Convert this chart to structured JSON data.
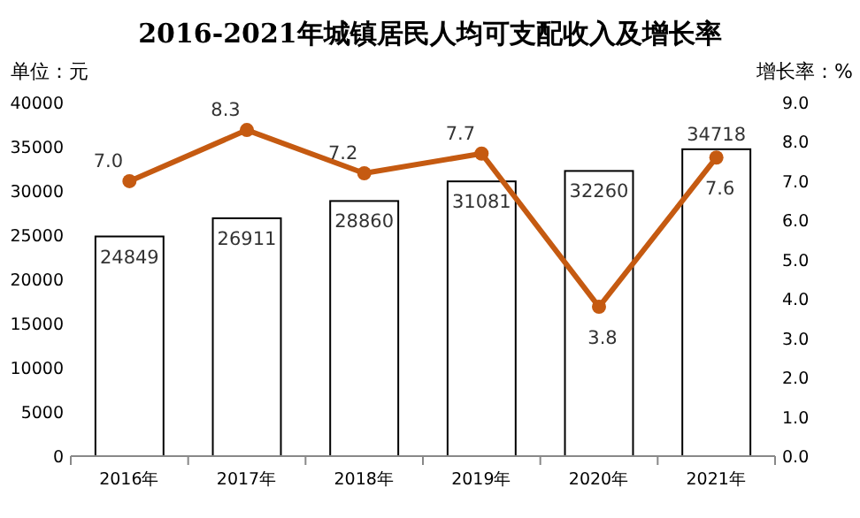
{
  "chart_data": {
    "type": "bar",
    "title": "2016-2021年城镇居民人均可支配收入及增长率",
    "ylabel": "单位：元",
    "y2label": "增长率：%",
    "categories": [
      "2016年",
      "2017年",
      "2018年",
      "2019年",
      "2020年",
      "2021年"
    ],
    "series": [
      {
        "color": "#ffffff",
        "values": [
          24849,
          26911,
          28860,
          31081,
          32260,
          34718
        ]
      },
      {
        "type": "line",
        "axis": "y2",
        "color": "#c55a11",
        "marker": "circle",
        "values": [
          7.0,
          8.3,
          7.2,
          7.7,
          3.8,
          7.6
        ],
        "value_labels": [
          "7.0",
          "8.3",
          "7.2",
          "7.7",
          "3.8",
          "7.6"
        ]
      }
    ],
    "ylim": [
      0,
      40000
    ],
    "yticks": [
      0,
      5000,
      10000,
      15000,
      20000,
      25000,
      30000,
      35000,
      40000
    ],
    "y2lim": [
      0,
      9
    ],
    "y2ticks": [
      {
        "value": 0,
        "label": "0.0"
      },
      {
        "value": 1,
        "label": "1.0"
      },
      {
        "value": 2,
        "label": "2.0"
      },
      {
        "value": 3,
        "label": "3.0"
      },
      {
        "value": 4,
        "label": "4.0"
      },
      {
        "value": 5,
        "label": "5.0"
      },
      {
        "value": 6,
        "label": "6.0"
      },
      {
        "value": 7,
        "label": "7.0"
      },
      {
        "value": 8,
        "label": "8.0"
      },
      {
        "value": 9,
        "label": "9.0"
      }
    ],
    "data_labels": true
  }
}
